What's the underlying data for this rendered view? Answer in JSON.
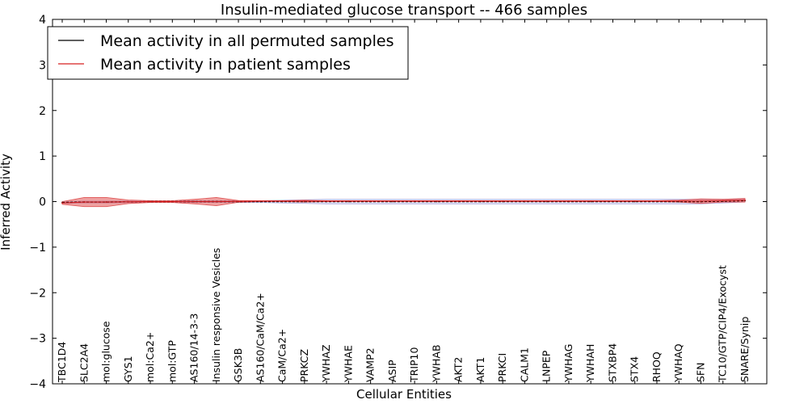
{
  "chart_data": {
    "type": "line",
    "title": "Insulin-mediated glucose transport -- 466 samples",
    "xlabel": "Cellular Entities",
    "ylabel": "Inferred Activity",
    "ylim": [
      -4,
      4
    ],
    "yticks": [
      -4,
      -3,
      -2,
      -1,
      0,
      1,
      2,
      3,
      4
    ],
    "ytick_labels": [
      "−4",
      "−3",
      "−2",
      "−1",
      "0",
      "1",
      "2",
      "3",
      "4"
    ],
    "categories": [
      "TBC1D4",
      "SLC2A4",
      "mol:glucose",
      "GYS1",
      "mol:Ca2+",
      "mol:GTP",
      "AS160/14-3-3",
      "Insulin responsive Vesicles",
      "GSK3B",
      "AS160/CaM/Ca2+",
      "CaM/Ca2+",
      "PRKCZ",
      "YWHAZ",
      "YWHAE",
      "VAMP2",
      "ASIP",
      "TRIP10",
      "YWHAB",
      "AKT2",
      "AKT1",
      "PRKCI",
      "CALM1",
      "LNPEP",
      "YWHAG",
      "YWHAH",
      "STXBP4",
      "STX4",
      "RHOQ",
      "YWHAQ",
      "SFN",
      "TC10/GTP/CIP4/Exocyst",
      "SNARE/Synip"
    ],
    "legend": {
      "position": "top-left",
      "entries": [
        {
          "label": "Mean activity in all permuted samples",
          "color": "#000000"
        },
        {
          "label": "Mean activity in patient samples",
          "color": "#d62020"
        }
      ]
    },
    "series": [
      {
        "name": "Mean activity in all permuted samples",
        "color": "#000000",
        "values": [
          -0.02,
          -0.01,
          -0.01,
          -0.005,
          0,
          0,
          0,
          0,
          0,
          0,
          0,
          0,
          0,
          0,
          0,
          0,
          0,
          0,
          0,
          0,
          0,
          0,
          0,
          0,
          0,
          0,
          0,
          0,
          0,
          0,
          0.01,
          0.02
        ],
        "band": [
          0.02,
          0.02,
          0.02,
          0.02,
          0.02,
          0.02,
          0.02,
          0.02,
          0.02,
          0.02,
          0.03,
          0.04,
          0.05,
          0.05,
          0.05,
          0.05,
          0.05,
          0.05,
          0.05,
          0.05,
          0.05,
          0.05,
          0.05,
          0.05,
          0.05,
          0.05,
          0.05,
          0.05,
          0.05,
          0.05,
          0.04,
          0.03
        ],
        "band_color": "#b0b0e0"
      },
      {
        "name": "Mean activity in patient samples",
        "color": "#d62020",
        "values": [
          -0.03,
          -0.01,
          -0.01,
          -0.005,
          0,
          0,
          0,
          0,
          0.005,
          0.01,
          0.01,
          0.01,
          0.01,
          0.01,
          0.01,
          0.01,
          0.01,
          0.01,
          0.01,
          0.01,
          0.01,
          0.01,
          0.01,
          0.01,
          0.01,
          0.01,
          0.01,
          0.01,
          0.01,
          0.01,
          0.02,
          0.03
        ],
        "band": [
          0.03,
          0.1,
          0.1,
          0.04,
          0.02,
          0.02,
          0.05,
          0.09,
          0.02,
          0.01,
          0.01,
          0.02,
          0.01,
          0.01,
          0.01,
          0.01,
          0.01,
          0.01,
          0.01,
          0.01,
          0.01,
          0.01,
          0.01,
          0.01,
          0.01,
          0.01,
          0.01,
          0.01,
          0.02,
          0.05,
          0.03,
          0.04
        ],
        "band_color": "#e05555"
      }
    ]
  }
}
